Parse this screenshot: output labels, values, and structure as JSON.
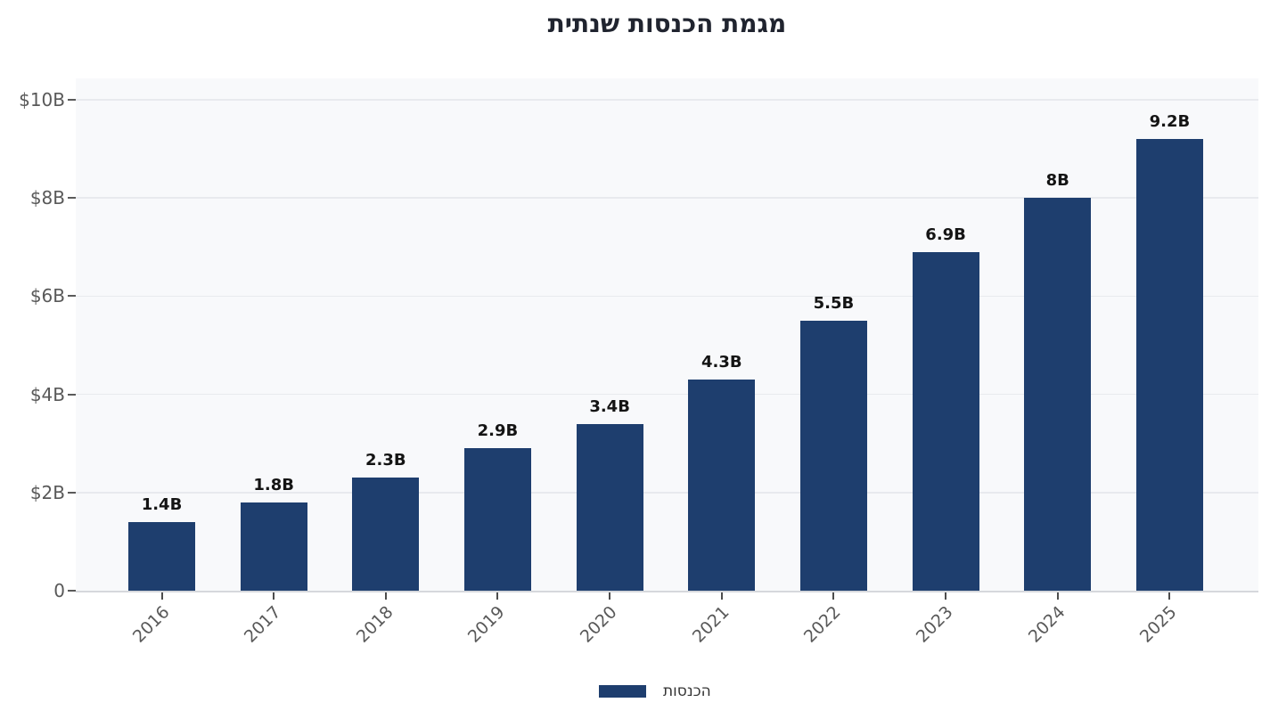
{
  "page": {
    "background_color": "#ffffff"
  },
  "chart_data": {
    "type": "bar",
    "title": "מגמת הכנסות שנתית",
    "categories": [
      "2016",
      "2017",
      "2018",
      "2019",
      "2020",
      "2021",
      "2022",
      "2023",
      "2024",
      "2025"
    ],
    "series": [
      {
        "name": "הכנסות",
        "values": [
          1.4,
          1.8,
          2.3,
          2.9,
          3.4,
          4.3,
          5.5,
          6.9,
          8.0,
          9.2
        ]
      }
    ],
    "bar_labels": [
      "1.4B",
      "1.8B",
      "2.3B",
      "2.9B",
      "3.4B",
      "4.3B",
      "5.5B",
      "6.9B",
      "8B",
      "9.2B"
    ],
    "y_ticks": [
      {
        "value": 0,
        "label": "0"
      },
      {
        "value": 2,
        "label": "$2B"
      },
      {
        "value": 4,
        "label": "$4B"
      },
      {
        "value": 6,
        "label": "$6B"
      },
      {
        "value": 8,
        "label": "$8B"
      },
      {
        "value": 10,
        "label": "$10B"
      }
    ],
    "xlabel": "",
    "ylabel": "",
    "ylim": [
      0,
      10.4
    ],
    "grid": "horizontal",
    "legend_position": "bottom-center",
    "x_label_rotation_deg": 45,
    "bar_color": "#1e3e6e",
    "value_label_color": "#141414",
    "axis_text_color": "#595959",
    "plot_background_color": "#f8f9fb",
    "gridline_color": "#e8eaee"
  }
}
